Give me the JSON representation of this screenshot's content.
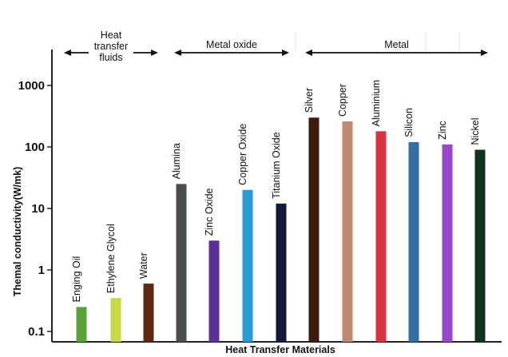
{
  "chart_data": {
    "type": "bar",
    "xlabel": "Heat Transfer Materials",
    "ylabel": "Themal conductivity(W/mk)",
    "yscale": "log",
    "ylim": [
      0.1,
      3500
    ],
    "yticks": [
      {
        "value": 0.1,
        "label": "0.1"
      },
      {
        "value": 1,
        "label": "1"
      },
      {
        "value": 10,
        "label": "10"
      },
      {
        "value": 100,
        "label": "100"
      },
      {
        "value": 1000,
        "label": "1000"
      }
    ],
    "grid": false,
    "groups": [
      {
        "label_lines": [
          "Heat",
          "transfer",
          "fluids"
        ],
        "start": 0,
        "end": 2
      },
      {
        "label_lines": [
          "Metal oxide"
        ],
        "start": 3,
        "end": 6
      },
      {
        "label_lines": [
          "Metal"
        ],
        "start": 7,
        "end": 12
      }
    ],
    "bars": [
      {
        "label": "Enging Oil",
        "value": 0.25,
        "color": "#5aa33a"
      },
      {
        "label": "Ethylene Glycol",
        "value": 0.35,
        "color": "#c7d944"
      },
      {
        "label": "Water",
        "value": 0.6,
        "color": "#5a2a12"
      },
      {
        "label": "Alumina",
        "value": 25,
        "color": "#4a4f4d"
      },
      {
        "label": "Zinc Oxide",
        "value": 3,
        "color": "#5b2f9a"
      },
      {
        "label": "Copper Oxide",
        "value": 20,
        "color": "#2a9ad4"
      },
      {
        "label": "Titanium Oxide",
        "value": 12,
        "color": "#14183e"
      },
      {
        "label": "Silver",
        "value": 300,
        "color": "#3c1a0e"
      },
      {
        "label": "Copper",
        "value": 260,
        "color": "#c08870"
      },
      {
        "label": "Aluminium",
        "value": 180,
        "color": "#d9333f"
      },
      {
        "label": "Silicon",
        "value": 120,
        "color": "#336fa0"
      },
      {
        "label": "Zinc",
        "value": 110,
        "color": "#9b45c7"
      },
      {
        "label": "Nickel",
        "value": 90,
        "color": "#12331e"
      }
    ]
  }
}
